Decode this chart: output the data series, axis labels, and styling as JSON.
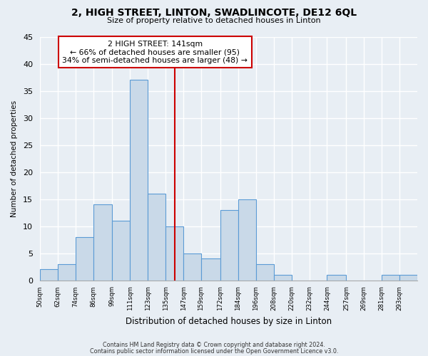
{
  "title": "2, HIGH STREET, LINTON, SWADLINCOTE, DE12 6QL",
  "subtitle": "Size of property relative to detached houses in Linton",
  "xlabel": "Distribution of detached houses by size in Linton",
  "ylabel": "Number of detached properties",
  "bin_labels": [
    "50sqm",
    "62sqm",
    "74sqm",
    "86sqm",
    "99sqm",
    "111sqm",
    "123sqm",
    "135sqm",
    "147sqm",
    "159sqm",
    "172sqm",
    "184sqm",
    "196sqm",
    "208sqm",
    "220sqm",
    "232sqm",
    "244sqm",
    "257sqm",
    "269sqm",
    "281sqm",
    "293sqm"
  ],
  "bin_edges": [
    50,
    62,
    74,
    86,
    99,
    111,
    123,
    135,
    147,
    159,
    172,
    184,
    196,
    208,
    220,
    232,
    244,
    257,
    269,
    281,
    293,
    305
  ],
  "bar_heights": [
    2,
    3,
    8,
    14,
    11,
    37,
    16,
    10,
    5,
    4,
    13,
    15,
    3,
    1,
    0,
    0,
    1,
    0,
    0,
    1,
    1
  ],
  "bar_color": "#c9d9e8",
  "bar_edge_color": "#5b9bd5",
  "property_line_x": 141,
  "property_line_color": "#cc0000",
  "annotation_text": "2 HIGH STREET: 141sqm\n← 66% of detached houses are smaller (95)\n34% of semi-detached houses are larger (48) →",
  "annotation_box_color": "#ffffff",
  "annotation_box_edge": "#cc0000",
  "ylim": [
    0,
    45
  ],
  "fig_background_color": "#e8eef4",
  "plot_background_color": "#e8eef4",
  "grid_color": "#ffffff",
  "footer_line1": "Contains HM Land Registry data © Crown copyright and database right 2024.",
  "footer_line2": "Contains public sector information licensed under the Open Government Licence v3.0."
}
